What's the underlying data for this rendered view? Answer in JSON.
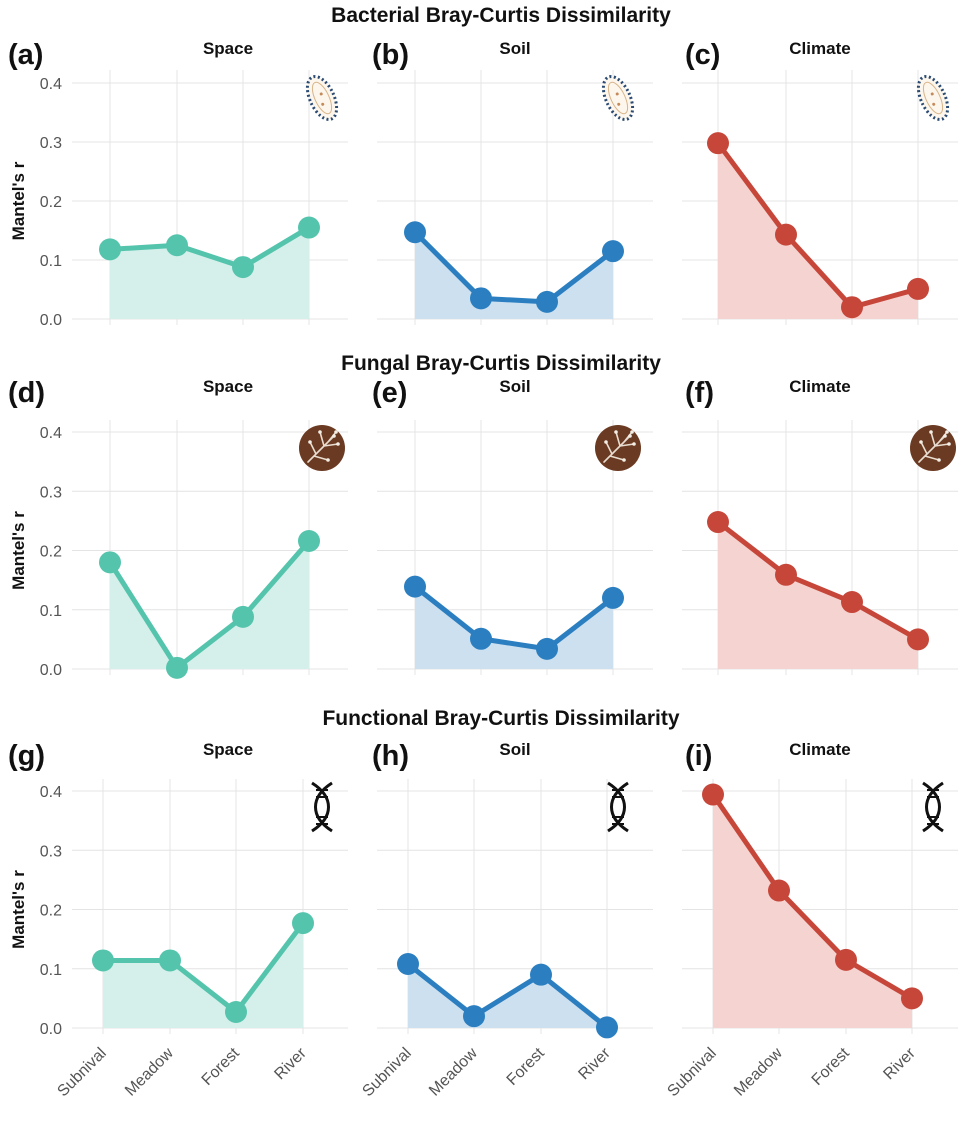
{
  "figure": {
    "row_titles": [
      "Bacterial Bray-Curtis Dissimilarity",
      "Fungal Bray-Curtis Dissimilarity",
      "Functional Bray-Curtis Dissimilarity"
    ]
  },
  "colors": {
    "Space": "#55c4ad",
    "Soil": "#2b7fc0",
    "Climate": "#c6473a",
    "Space_fill": "#d5f0ea",
    "Soil_fill": "#cde0f0",
    "Climate_fill": "#f5d3d1"
  },
  "chart_data": [
    {
      "type": "line",
      "panel": "(a)",
      "title": "Space",
      "icon": "bacterium-icon",
      "categories": [
        "Subnival",
        "Meadow",
        "Forest",
        "River"
      ],
      "values": [
        0.118,
        0.125,
        0.088,
        0.155
      ],
      "ylabel": "Mantel's r",
      "ylim": [
        0,
        0.42
      ],
      "yticks": [
        "0.0",
        "0.1",
        "0.2",
        "0.3",
        "0.4"
      ],
      "grid": true
    },
    {
      "type": "line",
      "panel": "(b)",
      "title": "Soil",
      "icon": "bacterium-icon",
      "categories": [
        "Subnival",
        "Meadow",
        "Forest",
        "River"
      ],
      "values": [
        0.147,
        0.035,
        0.029,
        0.115
      ],
      "ylim": [
        0,
        0.42
      ],
      "grid": true
    },
    {
      "type": "line",
      "panel": "(c)",
      "title": "Climate",
      "icon": "bacterium-icon",
      "categories": [
        "Subnival",
        "Meadow",
        "Forest",
        "River"
      ],
      "values": [
        0.298,
        0.143,
        0.02,
        0.051
      ],
      "ylim": [
        0,
        0.42
      ],
      "grid": true
    },
    {
      "type": "line",
      "panel": "(d)",
      "title": "Space",
      "icon": "fungus-icon",
      "categories": [
        "Subnival",
        "Meadow",
        "Forest",
        "River"
      ],
      "values": [
        0.18,
        0.002,
        0.088,
        0.216
      ],
      "ylabel": "Mantel's r",
      "ylim": [
        0,
        0.42
      ],
      "yticks": [
        "0.0",
        "0.1",
        "0.2",
        "0.3",
        "0.4"
      ],
      "grid": true
    },
    {
      "type": "line",
      "panel": "(e)",
      "title": "Soil",
      "icon": "fungus-icon",
      "categories": [
        "Subnival",
        "Meadow",
        "Forest",
        "River"
      ],
      "values": [
        0.139,
        0.051,
        0.034,
        0.12
      ],
      "ylim": [
        0,
        0.42
      ],
      "grid": true
    },
    {
      "type": "line",
      "panel": "(f)",
      "title": "Climate",
      "icon": "fungus-icon",
      "categories": [
        "Subnival",
        "Meadow",
        "Forest",
        "River"
      ],
      "values": [
        0.248,
        0.159,
        0.113,
        0.05
      ],
      "ylim": [
        0,
        0.42
      ],
      "grid": true
    },
    {
      "type": "line",
      "panel": "(g)",
      "title": "Space",
      "icon": "dna-icon",
      "categories": [
        "Subnival",
        "Meadow",
        "Forest",
        "River"
      ],
      "values": [
        0.114,
        0.114,
        0.027,
        0.177
      ],
      "ylabel": "Mantel's r",
      "ylim": [
        0,
        0.42
      ],
      "yticks": [
        "0.0",
        "0.1",
        "0.2",
        "0.3",
        "0.4"
      ],
      "xticks": [
        "Subnival",
        "Meadow",
        "Forest",
        "River"
      ],
      "grid": true
    },
    {
      "type": "line",
      "panel": "(h)",
      "title": "Soil",
      "icon": "dna-icon",
      "categories": [
        "Subnival",
        "Meadow",
        "Forest",
        "River"
      ],
      "values": [
        0.108,
        0.02,
        0.09,
        0.001
      ],
      "ylim": [
        0,
        0.42
      ],
      "xticks": [
        "Subnival",
        "Meadow",
        "Forest",
        "River"
      ],
      "grid": true
    },
    {
      "type": "line",
      "panel": "(i)",
      "title": "Climate",
      "icon": "dna-icon",
      "categories": [
        "Subnival",
        "Meadow",
        "Forest",
        "River"
      ],
      "values": [
        0.394,
        0.232,
        0.115,
        0.05
      ],
      "ylim": [
        0,
        0.42
      ],
      "xticks": [
        "Subnival",
        "Meadow",
        "Forest",
        "River"
      ],
      "grid": true
    }
  ]
}
